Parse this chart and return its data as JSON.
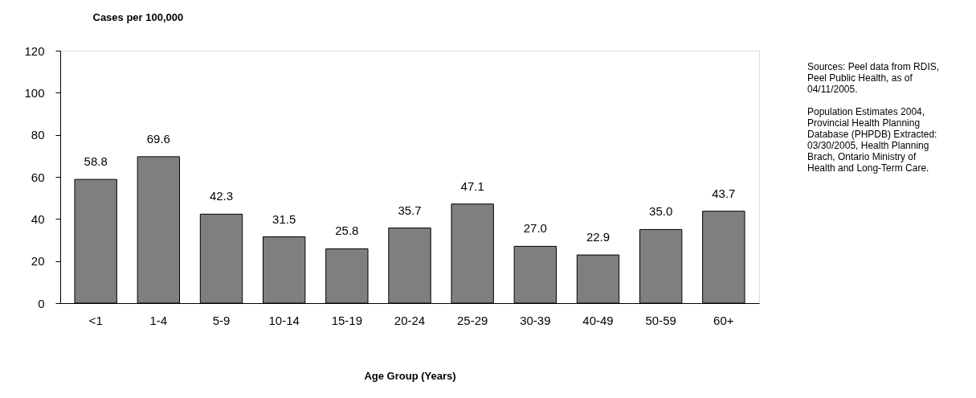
{
  "chart_data": {
    "type": "bar",
    "ylabel": "Cases per 100,000",
    "xlabel": "Age Group (Years)",
    "categories": [
      "<1",
      "1-4",
      "5-9",
      "10-14",
      "15-19",
      "20-24",
      "25-29",
      "30-39",
      "40-49",
      "50-59",
      "60+"
    ],
    "values": [
      58.8,
      69.6,
      42.3,
      31.5,
      25.8,
      35.7,
      47.1,
      27.0,
      22.9,
      35.0,
      43.7
    ],
    "value_labels": [
      "58.8",
      "69.6",
      "42.3",
      "31.5",
      "25.8",
      "35.7",
      "47.1",
      "27.0",
      "22.9",
      "35.0",
      "43.7"
    ],
    "color": "#7f7f7f",
    "ylim": [
      0,
      120
    ],
    "yticks": [
      0,
      20,
      40,
      60,
      80,
      100,
      120
    ],
    "grid": false,
    "annotations": [
      "Sources: Peel data from RDIS, Peel Public Health, as of 04/11/2005.",
      "Population Estimates 2004, Provincial Health Planning Database (PHPDB) Extracted: 03/30/2005, Health Planning Brach, Ontario Ministry of Health and Long-Term Care."
    ]
  }
}
